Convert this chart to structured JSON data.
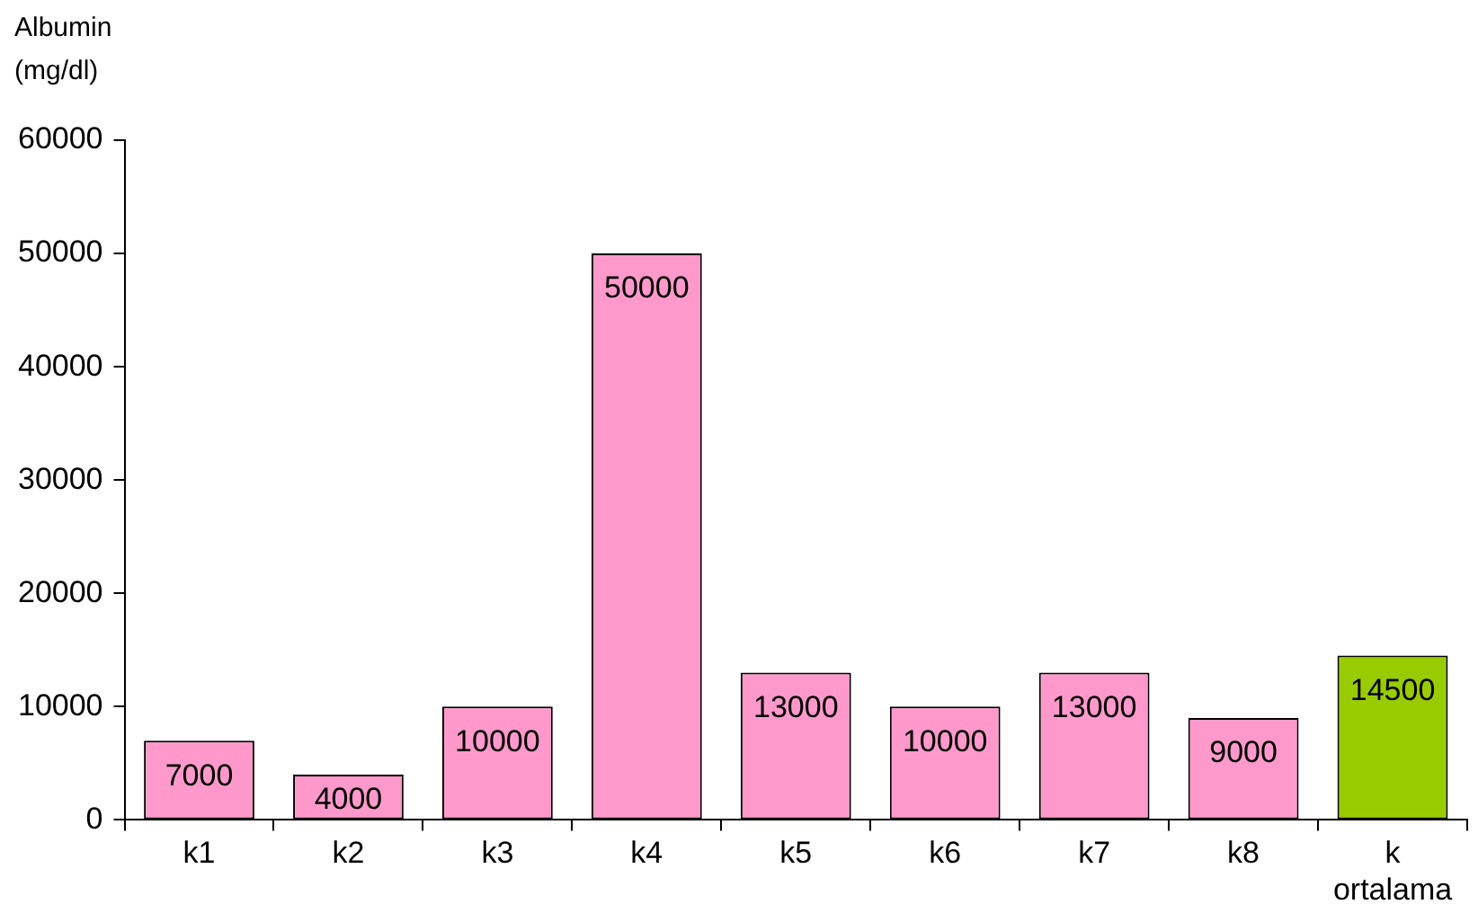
{
  "chart_data": {
    "type": "bar",
    "ylabel": "Albumin (mg/dl)",
    "categories": [
      "k1",
      "k2",
      "k3",
      "k4",
      "k5",
      "k6",
      "k7",
      "k8",
      "k ortalama"
    ],
    "values": [
      7000,
      4000,
      10000,
      50000,
      13000,
      10000,
      13000,
      9000,
      14500
    ],
    "colors": [
      "#ff99cc",
      "#ff99cc",
      "#ff99cc",
      "#ff99cc",
      "#ff99cc",
      "#ff99cc",
      "#ff99cc",
      "#ff99cc",
      "#99cc00"
    ],
    "ylim": [
      0,
      60000
    ],
    "yticks": [
      0,
      10000,
      20000,
      30000,
      40000,
      50000,
      60000
    ],
    "grid": false,
    "legend": false,
    "data_labels": true
  }
}
